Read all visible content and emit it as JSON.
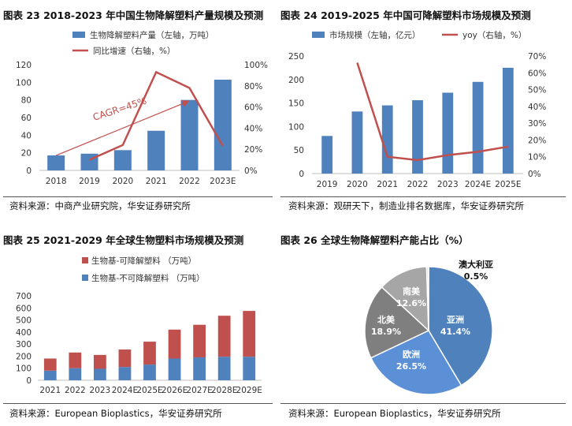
{
  "panels": {
    "p23": {
      "title": "图表 23 2018-2023 年中国生物降解塑料产量规模及预测",
      "source": "资料来源：中商产业研究院，华安证券研究所",
      "chart_data": {
        "type": "bar",
        "categories": [
          "2018",
          "2019",
          "2020",
          "2021",
          "2022",
          "2023E"
        ],
        "series": [
          {
            "name": "生物降解塑料产量（左轴，万吨）",
            "values": [
              17,
              19,
              23,
              45,
              80,
              103
            ],
            "color": "#4f81bd",
            "axis": "left"
          },
          {
            "name": "同比增速（右轴，%）",
            "values": [
              null,
              10,
              24,
              93,
              78,
              23
            ],
            "color": "#c0504d",
            "axis": "right",
            "kind": "line"
          }
        ],
        "annotation": "CAGR=45%",
        "ylim_left": [
          0,
          120
        ],
        "ylim_right": [
          0,
          100
        ],
        "left_ticks": [
          "0",
          "20",
          "40",
          "60",
          "80",
          "100",
          "120"
        ],
        "right_ticks": [
          "0%",
          "20%",
          "40%",
          "60%",
          "80%",
          "100%"
        ]
      }
    },
    "p24": {
      "title": "图表 24 2019-2025 年中国可降解塑料市场规模及预测",
      "source": "资料来源：观研天下，制造业排名数据库，华安证券研究所",
      "chart_data": {
        "type": "bar",
        "categories": [
          "2019",
          "2020",
          "2021",
          "2022",
          "2023",
          "2024E",
          "2025E"
        ],
        "series": [
          {
            "name": "市场规模（左轴，亿元）",
            "values": [
              80,
              132,
              145,
              156,
              172,
              195,
              225
            ],
            "color": "#4f81bd",
            "axis": "left"
          },
          {
            "name": "yoy（右轴，%）",
            "values": [
              null,
              66,
              10,
              8,
              11,
              13,
              16
            ],
            "color": "#c0504d",
            "axis": "right",
            "kind": "line"
          }
        ],
        "ylim_left": [
          0,
          250
        ],
        "ylim_right": [
          0,
          70
        ],
        "left_ticks": [
          "0",
          "50",
          "100",
          "150",
          "200",
          "250"
        ],
        "right_ticks": [
          "0%",
          "10%",
          "20%",
          "30%",
          "40%",
          "50%",
          "60%",
          "70%"
        ]
      }
    },
    "p25": {
      "title": "图表 25 2021-2029 年全球生物塑料市场规模及预测",
      "source": "资料来源：European Bioplastics，华安证券研究所",
      "chart_data": {
        "type": "bar",
        "stacked": true,
        "categories": [
          "2021",
          "2022",
          "2023",
          "2024E",
          "2025E",
          "2026E",
          "2027E",
          "2028E",
          "2029E"
        ],
        "series": [
          {
            "name": "生物基-不可降解塑料 （万吨）",
            "values": [
              80,
              100,
              95,
              110,
              130,
              180,
              190,
              195,
              195
            ],
            "color": "#4f81bd"
          },
          {
            "name": "生物基-可降解塑料 （万吨）",
            "values": [
              100,
              130,
              115,
              145,
              190,
              240,
              270,
              340,
              380
            ],
            "color": "#c0504d"
          }
        ],
        "ylim": [
          0,
          700
        ],
        "ticks": [
          "0",
          "100",
          "200",
          "300",
          "400",
          "500",
          "600",
          "700"
        ]
      }
    },
    "p26": {
      "title": "图表 26 全球生物降解塑料产能占比（%）",
      "source": "资料来源：European Bioplastics，华安证券研究所",
      "chart_data": {
        "type": "pie",
        "slices": [
          {
            "name": "亚洲",
            "value": 41.4,
            "label": "41.4%",
            "color": "#4f81bd"
          },
          {
            "name": "欧洲",
            "value": 26.5,
            "label": "26.5%",
            "color": "#5b8fd6"
          },
          {
            "name": "北美",
            "value": 18.9,
            "label": "18.9%",
            "color": "#7f7f7f"
          },
          {
            "name": "南美",
            "value": 12.6,
            "label": "12.6%",
            "color": "#a6a6a6"
          },
          {
            "name": "澳大利亚",
            "value": 0.5,
            "label": "0.5%",
            "color": "#d9d9d9"
          }
        ]
      }
    }
  }
}
